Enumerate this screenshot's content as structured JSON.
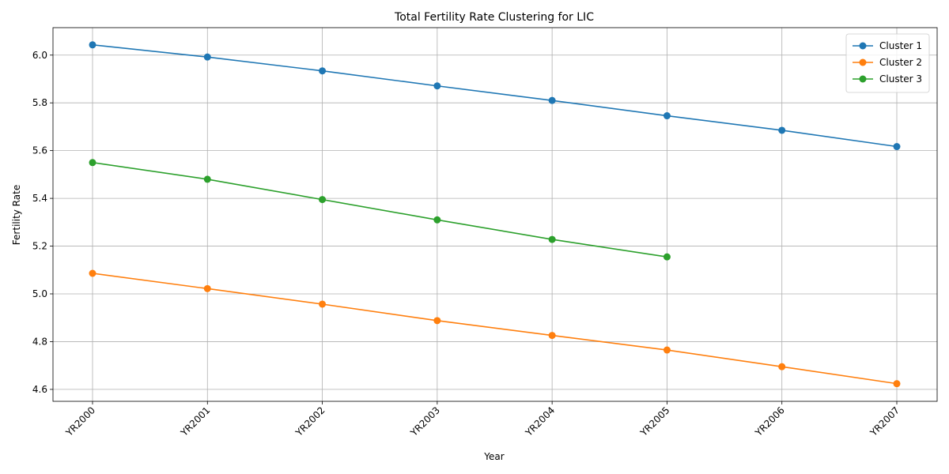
{
  "chart_data": {
    "type": "line",
    "title": "Total Fertility Rate Clustering for LIC",
    "xlabel": "Year",
    "ylabel": "Fertility Rate",
    "categories": [
      "YR2000",
      "YR2001",
      "YR2002",
      "YR2003",
      "YR2004",
      "YR2005",
      "YR2006",
      "YR2007"
    ],
    "ylim": [
      4.55,
      6.115
    ],
    "yticks": [
      4.6,
      4.8,
      5.0,
      5.2,
      5.4,
      5.6,
      5.8,
      6.0
    ],
    "ytick_labels": [
      "4.6",
      "4.8",
      "5.0",
      "5.2",
      "5.4",
      "5.6",
      "5.8",
      "6.0"
    ],
    "grid": true,
    "legend_position": "top-right",
    "series": [
      {
        "name": "Cluster 1",
        "color": "#1f77b4",
        "values": [
          6.043,
          5.992,
          5.934,
          5.871,
          5.81,
          5.746,
          5.685,
          5.617
        ]
      },
      {
        "name": "Cluster 2",
        "color": "#ff7f0e",
        "values": [
          5.086,
          5.022,
          4.957,
          4.888,
          4.826,
          4.765,
          4.695,
          4.624
        ]
      },
      {
        "name": "Cluster 3",
        "color": "#2ca02c",
        "values": [
          5.55,
          5.48,
          5.395,
          5.31,
          5.228,
          5.155,
          null,
          null
        ]
      }
    ]
  }
}
